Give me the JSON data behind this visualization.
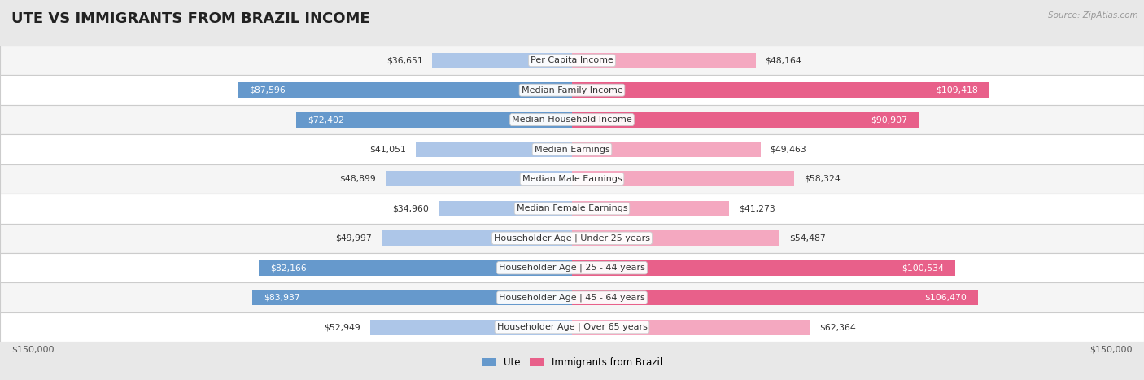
{
  "title": "UTE VS IMMIGRANTS FROM BRAZIL INCOME",
  "source": "Source: ZipAtlas.com",
  "categories": [
    "Per Capita Income",
    "Median Family Income",
    "Median Household Income",
    "Median Earnings",
    "Median Male Earnings",
    "Median Female Earnings",
    "Householder Age | Under 25 years",
    "Householder Age | 25 - 44 years",
    "Householder Age | 45 - 64 years",
    "Householder Age | Over 65 years"
  ],
  "ute_values": [
    36651,
    87596,
    72402,
    41051,
    48899,
    34960,
    49997,
    82166,
    83937,
    52949
  ],
  "brazil_values": [
    48164,
    109418,
    90907,
    49463,
    58324,
    41273,
    54487,
    100534,
    106470,
    62364
  ],
  "ute_labels": [
    "$36,651",
    "$87,596",
    "$72,402",
    "$41,051",
    "$48,899",
    "$34,960",
    "$49,997",
    "$82,166",
    "$83,937",
    "$52,949"
  ],
  "brazil_labels": [
    "$48,164",
    "$109,418",
    "$90,907",
    "$49,463",
    "$58,324",
    "$41,273",
    "$54,487",
    "$100,534",
    "$106,470",
    "$62,364"
  ],
  "ute_color_light": "#adc6e8",
  "ute_color_dark": "#6699cc",
  "brazil_color_light": "#f4a8c0",
  "brazil_color_dark": "#e8608a",
  "max_value": 150000,
  "legend_ute": "Ute",
  "legend_brazil": "Immigrants from Brazil",
  "bg_color": "#e8e8e8",
  "row_bg_even": "#f5f5f5",
  "row_bg_odd": "#ffffff",
  "title_fontsize": 13,
  "axis_label_left": "$150,000",
  "axis_label_right": "$150,000",
  "ute_dark_threshold": 65000,
  "brazil_dark_threshold": 85000
}
